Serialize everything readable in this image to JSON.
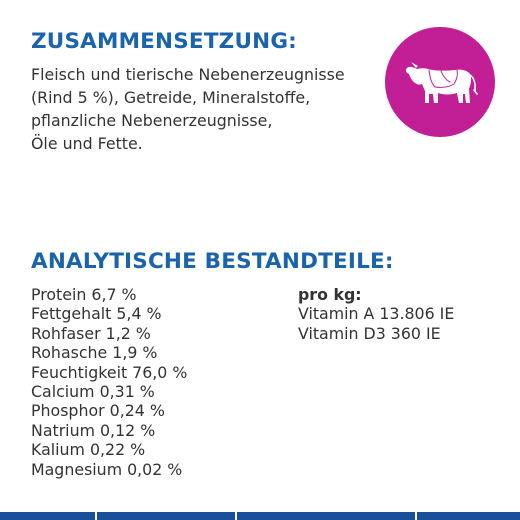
{
  "composition": {
    "heading": "ZUSAMMENSETZUNG:",
    "lines": [
      "Fleisch und tierische Nebenerzeugnisse",
      "(Rind 5 %), Getreide, Mineralstoffe,",
      "pflanzliche Nebenerzeugnisse,",
      "Öle und Fette."
    ]
  },
  "analysis": {
    "heading": "ANALYTISCHE BESTANDTEILE:",
    "nutrients": [
      "Protein 6,7 %",
      "Fettgehalt 5,4 %",
      "Rohfaser 1,2 %",
      "Rohasche 1,9 %",
      "Feuchtigkeit 76,0 %",
      "Calcium 0,31 %",
      "Phosphor 0,24 %",
      "Natrium 0,12 %",
      "Kalium 0,22 %",
      "Magnesium 0,02 %"
    ],
    "per_kg_label": "pro kg:",
    "vitamins": [
      "Vitamin A 13.806 IE",
      "Vitamin D3 360 IE"
    ]
  },
  "badge": {
    "icon": "cow-icon",
    "color": "#c21f96"
  },
  "colors": {
    "heading": "#1a63ad",
    "text": "#333333",
    "bar": "#1a4f9c"
  }
}
